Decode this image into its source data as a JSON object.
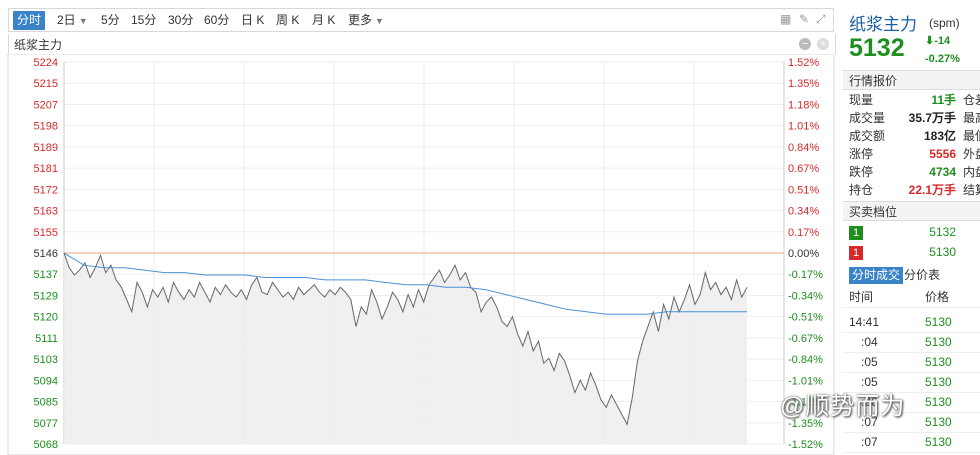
{
  "toolbar": {
    "tabs": [
      "分时",
      "2日",
      "5分",
      "15分",
      "30分",
      "60分",
      "日 K",
      "周 K",
      "月 K",
      "更多"
    ]
  },
  "chart_header": {
    "title": "纸浆主力"
  },
  "chart_data": {
    "type": "line",
    "title": "纸浆主力",
    "y_left_ticks": [
      "5224",
      "5215",
      "5207",
      "5198",
      "5189",
      "5181",
      "5172",
      "5163",
      "5155",
      "5146",
      "5137",
      "5129",
      "5120",
      "5111",
      "5103",
      "5094",
      "5085",
      "5077",
      "5068"
    ],
    "y_right_ticks": [
      "1.52%",
      "1.35%",
      "1.18%",
      "1.01%",
      "0.84%",
      "0.67%",
      "0.51%",
      "0.34%",
      "0.17%",
      "0.00%",
      "-0.17%",
      "-0.34%",
      "-0.51%",
      "-0.67%",
      "-0.84%",
      "-1.01%",
      "-1.18%",
      "-1.35%",
      "-1.52%"
    ],
    "ylim": [
      5068,
      5224
    ],
    "prev_settle": 5146,
    "price_line_color": "#666666",
    "avg_line_color": "#4a8fd4",
    "ref_line_color": "#f0a070",
    "series": [
      {
        "values": [
          5146,
          5140,
          5137,
          5139,
          5142,
          5136,
          5140,
          5145,
          5138,
          5141,
          5135,
          5132,
          5127,
          5122,
          5134,
          5130,
          5124,
          5131,
          5128,
          5132,
          5126,
          5134,
          5130,
          5127,
          5131,
          5128,
          5134,
          5130,
          5126,
          5132,
          5129,
          5133,
          5130,
          5128,
          5131,
          5127,
          5133,
          5136,
          5130,
          5129,
          5134,
          5131,
          5128,
          5130,
          5127,
          5132,
          5129,
          5131,
          5133,
          5130,
          5128,
          5131,
          5129,
          5132,
          5130,
          5127,
          5116,
          5124,
          5121,
          5131,
          5126,
          5119,
          5124,
          5130,
          5127,
          5122,
          5129,
          5124,
          5131,
          5126,
          5133,
          5136,
          5139,
          5134,
          5137,
          5141,
          5135,
          5138,
          5132,
          5130,
          5122,
          5126,
          5128,
          5124,
          5118,
          5116,
          5120,
          5113,
          5108,
          5114,
          5106,
          5110,
          5101,
          5103,
          5098,
          5105,
          5102,
          5096,
          5089,
          5094,
          5090,
          5097,
          5092,
          5086,
          5083,
          5088,
          5084,
          5080,
          5076,
          5087,
          5102,
          5110,
          5116,
          5122,
          5114,
          5125,
          5119,
          5128,
          5122,
          5127,
          5133,
          5125,
          5129,
          5138,
          5131,
          5134,
          5129,
          5132,
          5127,
          5135,
          5128,
          5132
        ]
      },
      {
        "values": [
          5146,
          5141,
          5140,
          5140,
          5139,
          5138,
          5138,
          5137,
          5137,
          5137,
          5136,
          5136,
          5136,
          5135,
          5135,
          5135,
          5134,
          5133,
          5133,
          5132,
          5132,
          5131,
          5129,
          5127,
          5125,
          5123,
          5122,
          5121,
          5121,
          5121,
          5122,
          5122,
          5122,
          5122,
          5122
        ]
      }
    ]
  },
  "right_panel": {
    "title": "纸浆主力",
    "code": "(spm)",
    "price": "5132",
    "change": "-14",
    "change_pct": "-0.27%",
    "quote_section": "行情报价",
    "quote_rows": [
      {
        "label": "现量",
        "value": "11手",
        "right_label": "仓差"
      },
      {
        "label": "成交量",
        "value": "35.7万手",
        "right_label": "最高"
      },
      {
        "label": "成交额",
        "value": "183亿",
        "right_label": "最低"
      },
      {
        "label": "涨停",
        "value": "5556",
        "right_label": "外盘"
      },
      {
        "label": "跌停",
        "value": "4734",
        "right_label": "内盘"
      },
      {
        "label": "持仓",
        "value": "22.1万手",
        "right_label": "结算"
      }
    ],
    "book_section": "买卖档位",
    "book": [
      {
        "tag": "1",
        "price": "5132"
      },
      {
        "tag": "1",
        "price": "5130"
      }
    ],
    "trade_tabs": [
      "分时成交",
      "分价表"
    ],
    "trade_headers": [
      "时间",
      "价格"
    ],
    "trades": [
      {
        "time": "14:41",
        "price": "5130"
      },
      {
        "time": ":04",
        "price": "5130"
      },
      {
        "time": ":05",
        "price": "5130"
      },
      {
        "time": ":05",
        "price": "5130"
      },
      {
        "time": ":06",
        "price": "5130"
      },
      {
        "time": ":07",
        "price": "5130"
      },
      {
        "time": ":07",
        "price": "5130"
      }
    ]
  },
  "watermark": "@顺势而为"
}
